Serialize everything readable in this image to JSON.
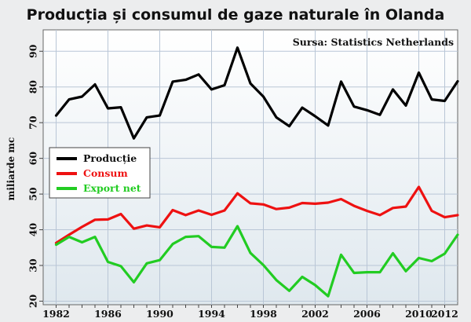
{
  "chart_data": {
    "type": "line",
    "title": "Producția și consumul de gaze naturale în Olanda",
    "source": "Sursa: Statistics Netherlands",
    "ylabel": "miliarde mc",
    "xlabel": "",
    "xlim": [
      1981,
      2013
    ],
    "ylim": [
      19,
      96
    ],
    "grid": true,
    "legend_position": "middle-left",
    "x_ticks": [
      1982,
      1986,
      1990,
      1994,
      1998,
      2002,
      2006,
      2010,
      2012
    ],
    "y_ticks": [
      20,
      30,
      40,
      50,
      60,
      70,
      80,
      90
    ],
    "x": [
      1982,
      1983,
      1984,
      1985,
      1986,
      1987,
      1988,
      1989,
      1990,
      1991,
      1992,
      1993,
      1994,
      1995,
      1996,
      1997,
      1998,
      1999,
      2000,
      2001,
      2002,
      2003,
      2004,
      2005,
      2006,
      2007,
      2008,
      2009,
      2010,
      2011,
      2012
    ],
    "series": [
      {
        "name": "Producție",
        "color": "#000000",
        "values": [
          72,
          76.5,
          77.3,
          80.7,
          74,
          74.3,
          65.6,
          71.5,
          72,
          81.5,
          82,
          83.5,
          79.3,
          80.5,
          91,
          81,
          77.3,
          71.5,
          69,
          74.2,
          71.8,
          69.2,
          81.5,
          74.5,
          73.5,
          72.2,
          79.3,
          74.8,
          84,
          76.5,
          76.1
        ]
      },
      {
        "name": "Consum",
        "color": "#ee1111",
        "values": [
          36.3,
          38.6,
          40.8,
          42.8,
          42.9,
          44.4,
          40.3,
          41.2,
          40.7,
          45.5,
          44.1,
          45.4,
          44.2,
          45.4,
          50.2,
          47.4,
          47.1,
          45.8,
          46.2,
          47.5,
          47.3,
          47.6,
          48.6,
          46.7,
          45.3,
          44.1,
          46.1,
          46.5,
          52,
          45.3,
          43.5
        ]
      },
      {
        "name": "Export net",
        "color": "#22cc22",
        "values": [
          35.8,
          38,
          36.5,
          38,
          31,
          29.8,
          25.3,
          30.6,
          31.5,
          36,
          38,
          38.2,
          35.2,
          35,
          41,
          33.5,
          30.1,
          25.9,
          22.9,
          26.8,
          24.5,
          21.4,
          33,
          27.9,
          28.1,
          28.1,
          33.4,
          28.4,
          32.1,
          31.2,
          33.3
        ]
      }
    ],
    "last_point": {
      "x": 2013,
      "values": [
        81.6,
        44.1,
        38.6
      ]
    }
  }
}
